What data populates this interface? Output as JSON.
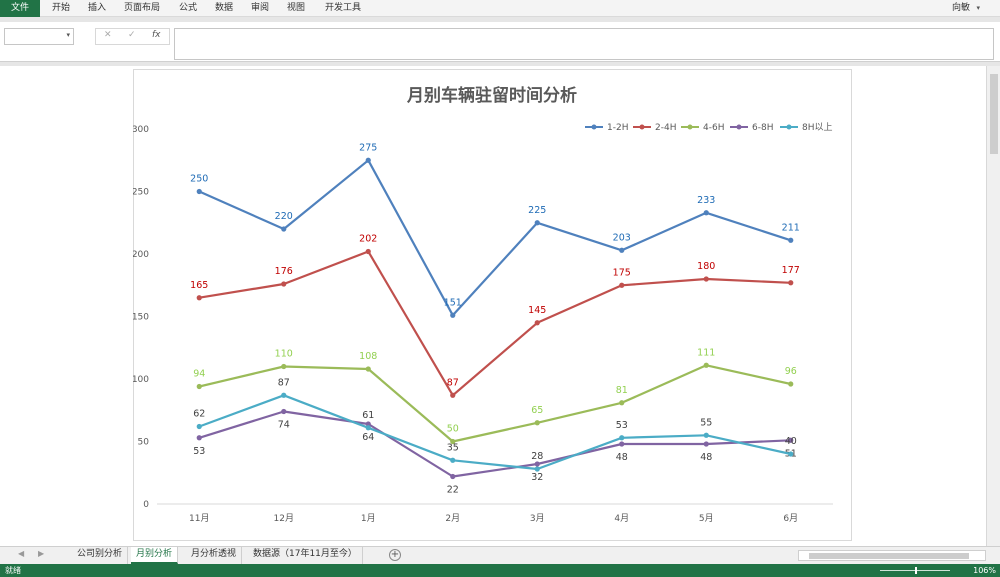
{
  "ribbon": {
    "tabs": [
      "文件",
      "开始",
      "插入",
      "页面布局",
      "公式",
      "数据",
      "审阅",
      "视图",
      "开发工具"
    ],
    "user": "向敏"
  },
  "formula_bar": {
    "fx_label": "fx",
    "cancel_icon": "x-icon",
    "confirm_icon": "check-icon",
    "value": ""
  },
  "sheet_tabs": [
    "公司别分析",
    "月别分析",
    "月分析透视",
    "数据源（17年11月至今）"
  ],
  "active_sheet": "月别分析",
  "status": {
    "ready": "就绪",
    "zoom": "106%"
  },
  "chart_data": {
    "type": "line",
    "title": "月别车辆驻留时间分析",
    "categories": [
      "11月",
      "12月",
      "1月",
      "2月",
      "3月",
      "4月",
      "5月",
      "6月"
    ],
    "ylim": [
      0,
      300
    ],
    "yticks": [
      0,
      50,
      100,
      150,
      200,
      250,
      300
    ],
    "grid": false,
    "legend_position": "top-right",
    "series": [
      {
        "name": "1-2H",
        "color": "#4F81BD",
        "label_color": "#1F6BB5",
        "values": [
          250,
          220,
          275,
          151,
          225,
          203,
          233,
          211
        ],
        "labels": [
          "250",
          "220",
          "275",
          "151",
          "225",
          "203",
          "233",
          "211"
        ],
        "label_pos": "above"
      },
      {
        "name": "2-4H",
        "color": "#C0504D",
        "label_color": "#C00000",
        "values": [
          165,
          176,
          202,
          87,
          145,
          175,
          180,
          177
        ],
        "labels": [
          "165",
          "176",
          "202",
          "87",
          "145",
          "175",
          "180",
          "177"
        ],
        "label_pos": "above"
      },
      {
        "name": "4-6H",
        "color": "#9BBB59",
        "label_color": "#92D050",
        "values": [
          94,
          110,
          108,
          50,
          65,
          81,
          111,
          96
        ],
        "labels": [
          "94",
          "110",
          "108",
          "50",
          "65",
          "81",
          "111",
          "96"
        ],
        "label_pos": "above"
      },
      {
        "name": "6-8H",
        "color": "#8064A2",
        "label_color": "#404040",
        "values": [
          53,
          74,
          64,
          22,
          32,
          48,
          48,
          51
        ],
        "labels": [
          "53",
          "74",
          "64",
          "22",
          "32",
          "48",
          "48",
          "51"
        ],
        "label_pos": "below"
      },
      {
        "name": "8H以上",
        "color": "#4BACC6",
        "label_color": "#404040",
        "values": [
          62,
          87,
          61,
          35,
          28,
          53,
          55,
          40
        ],
        "labels": [
          "62",
          "87",
          "61",
          "35",
          "28",
          "53",
          "55",
          "40"
        ],
        "label_pos": "above"
      }
    ]
  }
}
